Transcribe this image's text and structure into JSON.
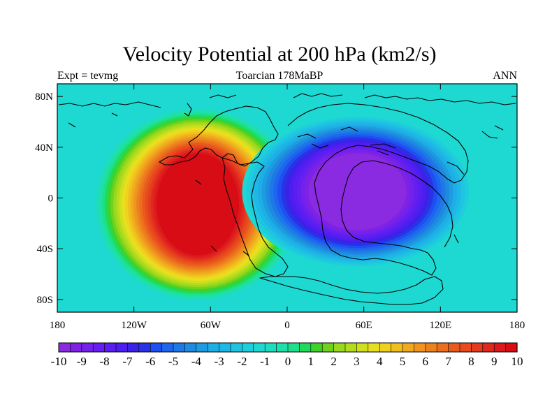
{
  "header": {
    "title": "Velocity Potential at 200 hPa (km2/s)",
    "left_label": "Expt = tevmg",
    "center_label": "Toarcian 178MaBP",
    "right_label": "ANN"
  },
  "map": {
    "lon_range": [
      -180,
      180
    ],
    "lat_range": [
      -90,
      90
    ],
    "x_ticks": [
      {
        "value": -180,
        "label": "180"
      },
      {
        "value": -120,
        "label": "120W"
      },
      {
        "value": -60,
        "label": "60W"
      },
      {
        "value": 0,
        "label": "0"
      },
      {
        "value": 60,
        "label": "60E"
      },
      {
        "value": 120,
        "label": "120E"
      },
      {
        "value": 180,
        "label": "180"
      }
    ],
    "y_ticks": [
      {
        "value": 80,
        "label": "80N"
      },
      {
        "value": 40,
        "label": "40N"
      },
      {
        "value": 0,
        "label": "0"
      },
      {
        "value": -40,
        "label": "40S"
      },
      {
        "value": -80,
        "label": "80S"
      }
    ],
    "field_centers": [
      {
        "name": "positive-max",
        "lon": -70,
        "lat": -5,
        "value": 10
      },
      {
        "name": "negative-min",
        "lon": 55,
        "lat": 5,
        "value": -10
      }
    ],
    "background_value": -1.5
  },
  "colorbar": {
    "min": -10,
    "max": 10,
    "step": 0.5,
    "labels": [
      "-10",
      "-9",
      "-8",
      "-7",
      "-6",
      "-5",
      "-4",
      "-3",
      "-2",
      "-1",
      "0",
      "1",
      "2",
      "3",
      "4",
      "5",
      "6",
      "7",
      "8",
      "9",
      "10"
    ],
    "colors": [
      "#8a2be2",
      "#7f22e6",
      "#7322ea",
      "#661ff0",
      "#5a1ef0",
      "#4d1ef0",
      "#3a22e8",
      "#2a32e6",
      "#1e4ff0",
      "#1e65f0",
      "#1e78e6",
      "#1e8ae0",
      "#1e9ce0",
      "#1eaee6",
      "#1eb8e6",
      "#1ec4e0",
      "#1ecedc",
      "#1ed8d2",
      "#1edcbe",
      "#1ee0a8",
      "#1ee08c",
      "#1edc5a",
      "#3ed22a",
      "#6ed21e",
      "#98d81e",
      "#b4dc1e",
      "#d0e01e",
      "#e8e01e",
      "#f0d21e",
      "#f0be1e",
      "#f0aa1e",
      "#f0961e",
      "#ec821e",
      "#ec6e1e",
      "#e85a1e",
      "#e84a1e",
      "#e43a1e",
      "#e0281e",
      "#dc1a1e",
      "#d80c14"
    ]
  }
}
